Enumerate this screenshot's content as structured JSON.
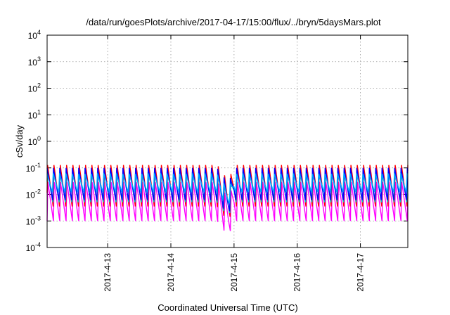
{
  "chart_data": {
    "type": "line",
    "title": "/data/run/goesPlots/archive/2017-04-17/15:00/flux/../bryn/5daysMars.plot",
    "xlabel": "Coordinated Universal Time (UTC)",
    "ylabel": "cSv/day",
    "y_scale": "log",
    "ylim": [
      0.0001,
      10000
    ],
    "y_ticks": [
      {
        "base": "10",
        "exp": "-4"
      },
      {
        "base": "10",
        "exp": "-3"
      },
      {
        "base": "10",
        "exp": "-2"
      },
      {
        "base": "10",
        "exp": "-1"
      },
      {
        "base": "10",
        "exp": "0"
      },
      {
        "base": "10",
        "exp": "1"
      },
      {
        "base": "10",
        "exp": "2"
      },
      {
        "base": "10",
        "exp": "3"
      },
      {
        "base": "10",
        "exp": "4"
      }
    ],
    "xlim": [
      "2017-04-12T01:00",
      "2017-04-17T18:00"
    ],
    "x_ticks": [
      "2017-4-13",
      "2017-4-14",
      "2017-4-15",
      "2017-4-16",
      "2017-4-17"
    ],
    "grid": true,
    "sawtooth_period_hours": 2.4,
    "series": [
      {
        "color": "#ff00ff",
        "peak": 0.03,
        "trough": 0.001
      },
      {
        "color": "#ff0000",
        "peak": 0.13,
        "trough": 0.0035
      },
      {
        "color": "#00c8c8",
        "peak": 0.075,
        "trough": 0.005
      },
      {
        "color": "#0000ff",
        "peak": 0.1,
        "trough": 0.006
      },
      {
        "color": "#00aaff",
        "peak": 0.06,
        "trough": 0.012
      }
    ]
  }
}
